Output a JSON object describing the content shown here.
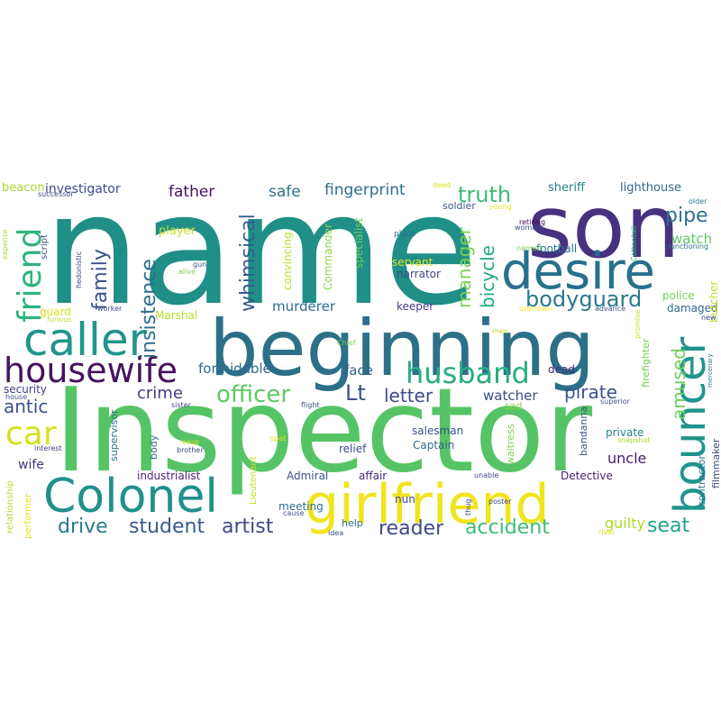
{
  "wordcloud": {
    "words": [
      {
        "text": "name",
        "color": "#1f8f87"
      },
      {
        "text": "Inspector",
        "color": "#56c466"
      },
      {
        "text": "beginning",
        "color": "#2c7088"
      },
      {
        "text": "son",
        "color": "#46327f"
      },
      {
        "text": "girlfriend",
        "color": "#f0e51c"
      },
      {
        "text": "desire",
        "color": "#27708e"
      },
      {
        "text": "Colonel",
        "color": "#20908c"
      },
      {
        "text": "caller",
        "color": "#21958a"
      },
      {
        "text": "bouncer",
        "color": "#1f958b"
      },
      {
        "text": "housewife",
        "color": "#46135f"
      },
      {
        "text": "husband",
        "color": "#27ad80"
      },
      {
        "text": "friend",
        "color": "#2fb47c"
      },
      {
        "text": "officer",
        "color": "#5ec962"
      },
      {
        "text": "car",
        "color": "#d5e21a"
      },
      {
        "text": "bodyguard",
        "color": "#2a788e"
      },
      {
        "text": "insistence",
        "color": "#2e6e8e"
      },
      {
        "text": "family",
        "color": "#3b518b"
      },
      {
        "text": "whimsical",
        "color": "#365c8d"
      },
      {
        "text": "truth",
        "color": "#3dbc74"
      },
      {
        "text": "manager",
        "color": "#7ad151"
      },
      {
        "text": "bicycle",
        "color": "#22a884"
      },
      {
        "text": "pipe",
        "color": "#2d708e"
      },
      {
        "text": "amused",
        "color": "#6ece58"
      },
      {
        "text": "Lt",
        "color": "#3a538b"
      },
      {
        "text": "pirate",
        "color": "#3b528b"
      },
      {
        "text": "crime",
        "color": "#443a83"
      },
      {
        "text": "student",
        "color": "#38598c"
      },
      {
        "text": "artist",
        "color": "#3f4788"
      },
      {
        "text": "drive",
        "color": "#2a788e"
      },
      {
        "text": "reader",
        "color": "#3f4889"
      },
      {
        "text": "accident",
        "color": "#3dbc74"
      },
      {
        "text": "seat",
        "color": "#20a386"
      },
      {
        "text": "letter",
        "color": "#3f4a8a"
      },
      {
        "text": "antic",
        "color": "#3c508b"
      },
      {
        "text": "fingerprint",
        "color": "#2e6d8e"
      },
      {
        "text": "safe",
        "color": "#2c728e"
      },
      {
        "text": "father",
        "color": "#471063"
      },
      {
        "text": "formidable",
        "color": "#31688e"
      },
      {
        "text": "murderer",
        "color": "#2f6c8e"
      },
      {
        "text": "face",
        "color": "#355f8d"
      },
      {
        "text": "watch",
        "color": "#5ec962"
      },
      {
        "text": "watcher",
        "color": "#3e4c8a"
      },
      {
        "text": "guilty",
        "color": "#addc30"
      },
      {
        "text": "uncle",
        "color": "#481a6c"
      },
      {
        "text": "investigator",
        "color": "#3e4a89"
      },
      {
        "text": "beacon",
        "color": "#a5db36"
      },
      {
        "text": "sheriff",
        "color": "#26828e"
      },
      {
        "text": "lighthouse",
        "color": "#31688e"
      },
      {
        "text": "soldier",
        "color": "#3a548c"
      },
      {
        "text": "specialist",
        "color": "#6ece58"
      },
      {
        "text": "player",
        "color": "#c2df23"
      },
      {
        "text": "convincing",
        "color": "#b5de2b"
      },
      {
        "text": "Commander",
        "color": "#90d743"
      },
      {
        "text": "servant",
        "color": "#e5e419"
      },
      {
        "text": "narrator",
        "color": "#414487"
      },
      {
        "text": "keeper",
        "color": "#443983"
      },
      {
        "text": "football",
        "color": "#2c728e"
      },
      {
        "text": "bodyguard2",
        "color": "#2a788e"
      },
      {
        "text": "police",
        "color": "#73d056"
      },
      {
        "text": "damaged",
        "color": "#31688e"
      },
      {
        "text": "butcher",
        "color": "#bddf26"
      },
      {
        "text": "firefighter",
        "color": "#75d054"
      },
      {
        "text": "Marshal",
        "color": "#b8de29"
      },
      {
        "text": "guard",
        "color": "#d2e21b"
      },
      {
        "text": "security",
        "color": "#424086"
      },
      {
        "text": "wife",
        "color": "#453781"
      },
      {
        "text": "supervisor",
        "color": "#2c718e"
      },
      {
        "text": "industrialist",
        "color": "#482475"
      },
      {
        "text": "body",
        "color": "#2e6f8e"
      },
      {
        "text": "relief",
        "color": "#3e4989"
      },
      {
        "text": "salesman",
        "color": "#3b528b"
      },
      {
        "text": "Captain",
        "color": "#31688e"
      },
      {
        "text": "Admiral",
        "color": "#3a548c"
      },
      {
        "text": "affair",
        "color": "#482878"
      },
      {
        "text": "Detective",
        "color": "#481b6d"
      },
      {
        "text": "waitress",
        "color": "#81d34d"
      },
      {
        "text": "nun",
        "color": "#3f4788"
      },
      {
        "text": "meeting",
        "color": "#2d708e"
      },
      {
        "text": "help",
        "color": "#2f6c8e"
      },
      {
        "text": "bandanna",
        "color": "#3b528b"
      },
      {
        "text": "private",
        "color": "#25848e"
      },
      {
        "text": "contractor",
        "color": "#2a788e"
      },
      {
        "text": "filmmaker",
        "color": "#3f4788"
      },
      {
        "text": "dead",
        "color": "#482878"
      },
      {
        "text": "sad",
        "color": "#8fd744"
      },
      {
        "text": "Lieutenant",
        "color": "#c8e020"
      },
      {
        "text": "relationship",
        "color": "#b5de2b"
      },
      {
        "text": "performer",
        "color": "#e2e418"
      },
      {
        "text": "script",
        "color": "#3b528b"
      },
      {
        "text": "hedonistic",
        "color": "#3f4788"
      },
      {
        "text": "expense",
        "color": "#a8db34"
      },
      {
        "text": "successor",
        "color": "#3f4a8a"
      },
      {
        "text": "deed",
        "color": "#d8e219"
      },
      {
        "text": "young",
        "color": "#e7e419"
      },
      {
        "text": "retiring",
        "color": "#440154"
      },
      {
        "text": "woman",
        "color": "#3e4c8a"
      },
      {
        "text": "named",
        "color": "#7ad151"
      },
      {
        "text": "place",
        "color": "#2c718e"
      },
      {
        "text": "older",
        "color": "#2a788e"
      },
      {
        "text": "functioning",
        "color": "#2e6e8e"
      },
      {
        "text": "Cottontail",
        "color": "#3dbc74"
      },
      {
        "text": "unknown",
        "color": "#fde725"
      },
      {
        "text": "advance",
        "color": "#3b528b"
      },
      {
        "text": "promise",
        "color": "#c2df23"
      },
      {
        "text": "new",
        "color": "#3f4788"
      },
      {
        "text": "mercenary",
        "color": "#2a788e"
      },
      {
        "text": "superior",
        "color": "#3b528b"
      },
      {
        "text": "snapshot",
        "color": "#addc30"
      },
      {
        "text": "men",
        "color": "#bddf26"
      },
      {
        "text": "Chief",
        "color": "#7ad151"
      },
      {
        "text": "flight",
        "color": "#3b528b"
      },
      {
        "text": "sister",
        "color": "#3f4788"
      },
      {
        "text": "house",
        "color": "#3b528b"
      },
      {
        "text": "interest",
        "color": "#414487"
      },
      {
        "text": "brother",
        "color": "#3f4788"
      },
      {
        "text": "ease",
        "color": "#d8e219"
      },
      {
        "text": "gun",
        "color": "#3b528b"
      },
      {
        "text": "alive",
        "color": "#7ad151"
      },
      {
        "text": "worker",
        "color": "#3f4788"
      },
      {
        "text": "furious",
        "color": "#bddf26"
      },
      {
        "text": "spat",
        "color": "#e7e419"
      },
      {
        "text": "cause",
        "color": "#3b528b"
      },
      {
        "text": "thug",
        "color": "#414487"
      },
      {
        "text": "poster",
        "color": "#3f4788"
      },
      {
        "text": "idea",
        "color": "#3b528b"
      },
      {
        "text": "unable",
        "color": "#3f4788"
      },
      {
        "text": "rival",
        "color": "#e2e418"
      }
    ]
  }
}
